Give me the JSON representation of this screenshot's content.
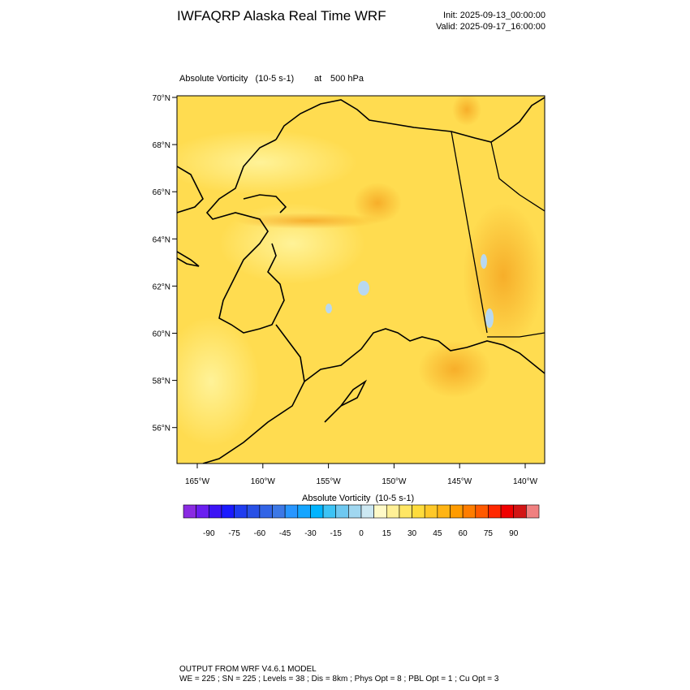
{
  "header": {
    "title": "IWFAQRP Alaska Real Time WRF",
    "init": "Init: 2025-09-13_00:00:00",
    "valid": "Valid: 2025-09-17_16:00:00"
  },
  "plot": {
    "field": "Absolute Vorticity   (10-5 s-1)",
    "level_prefix": "at",
    "level": "500 hPa",
    "lat_labels": [
      "70°N",
      "68°N",
      "66°N",
      "64°N",
      "62°N",
      "60°N",
      "58°N",
      "56°N"
    ],
    "lon_labels": [
      "165°W",
      "160°W",
      "155°W",
      "150°W",
      "145°W",
      "140°W"
    ]
  },
  "colorbar": {
    "title": "Absolute Vorticity  (10-5 s-1)",
    "colors": [
      "#8a2be2",
      "#6a1ef0",
      "#3c14f5",
      "#1a1aff",
      "#1f3cf0",
      "#2850e6",
      "#3264e6",
      "#3c78e6",
      "#2896ff",
      "#14a5ff",
      "#00b4ff",
      "#3cc3f5",
      "#6ec8f0",
      "#a0d7f0",
      "#cce8f2",
      "#fffac8",
      "#fff096",
      "#ffe664",
      "#ffdc3c",
      "#ffc828",
      "#ffb414",
      "#ff9b00",
      "#ff7d00",
      "#ff5a00",
      "#ff2800",
      "#f00000",
      "#d21414",
      "#f08080"
    ],
    "ticks": [
      -90,
      -75,
      -60,
      -45,
      -30,
      -15,
      0,
      15,
      30,
      45,
      60,
      75,
      90
    ]
  },
  "footer": {
    "line1": "OUTPUT FROM WRF V4.6.1 MODEL",
    "line2": "WE = 225 ; SN = 225 ; Levels = 38 ; Dis = 8km ; Phys Opt = 8 ; PBL Opt = 1 ; Cu Opt = 3"
  }
}
